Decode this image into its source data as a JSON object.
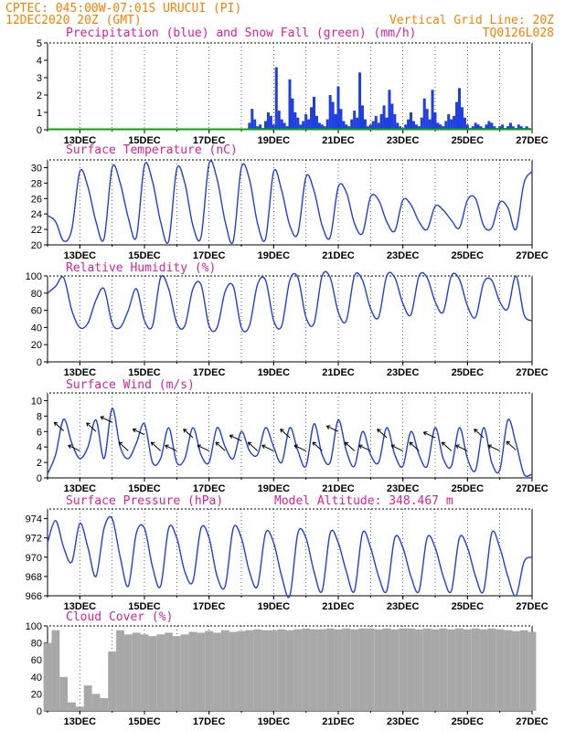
{
  "header": {
    "line1_left": "CPTEC:   045:00W-07:01S   URUCUI (PI)",
    "line2_left": "12DEC2020 20Z (GMT)",
    "line2_right": "Vertical Grid Line: 20Z",
    "line3_right": "TQ0126L028"
  },
  "colors": {
    "header": "#ff8000",
    "title": "#e0209a",
    "series": "#1f3fe0",
    "snow": "#00aa00",
    "cloud": "#a8a8a8"
  },
  "chart_data": [
    {
      "type": "bar",
      "title": "Precipitation (blue) and Snow Fall (green) (mm/h)",
      "x_tick_labels": [
        "13DEC",
        "15DEC",
        "17DEC",
        "19DEC",
        "21DEC",
        "23DEC",
        "25DEC",
        "27DEC"
      ],
      "ylim": [
        0,
        5
      ],
      "yticks": [
        0,
        1,
        2,
        3,
        4,
        5
      ],
      "grid": "vertical dotted at 20Z",
      "x_hours_from_start": [
        150,
        152,
        154,
        156,
        158,
        160,
        162,
        164,
        166,
        168,
        170,
        172,
        174,
        176,
        178,
        180,
        182,
        184,
        186,
        188,
        190,
        192,
        194,
        196,
        198,
        200,
        202,
        204,
        206,
        208,
        210,
        212,
        214,
        216,
        218,
        220,
        222,
        224,
        226,
        228,
        230,
        232,
        234,
        236,
        238,
        240,
        242,
        244,
        246,
        248,
        250,
        252,
        254,
        256,
        258,
        260,
        262,
        264,
        266,
        268,
        270,
        272,
        274,
        276,
        278,
        280,
        282,
        284,
        286,
        288,
        290,
        292,
        294,
        296,
        298,
        300,
        302,
        304,
        306,
        308,
        310,
        312,
        314,
        316,
        318,
        320,
        322,
        324,
        326,
        328,
        330,
        332,
        334,
        336,
        338,
        340,
        342,
        344,
        346,
        348,
        350,
        352,
        354,
        356,
        358
      ],
      "series": [
        {
          "name": "Precipitation",
          "values": [
            0.4,
            1.2,
            0.6,
            0.2,
            0.3,
            0.1,
            0.5,
            1.0,
            0.8,
            0.3,
            3.6,
            1.1,
            0.6,
            0.4,
            0.2,
            2.9,
            1.8,
            1.0,
            0.7,
            0.3,
            0.5,
            0.9,
            0.6,
            1.3,
            1.9,
            0.8,
            0.4,
            0.3,
            0.2,
            0.6,
            2.0,
            1.6,
            0.9,
            2.5,
            1.2,
            0.5,
            0.3,
            0.2,
            0.6,
            1.1,
            0.7,
            3.3,
            1.4,
            0.6,
            0.2,
            0.3,
            0.5,
            0.8,
            0.4,
            0.9,
            1.4,
            0.7,
            2.3,
            1.5,
            0.9,
            0.4,
            0.2,
            0.1,
            0.3,
            0.6,
            1.0,
            0.5,
            0.3,
            0.2,
            0.7,
            1.8,
            1.2,
            0.6,
            2.3,
            1.0,
            0.4,
            0.3,
            0.2,
            0.5,
            0.9,
            0.6,
            0.8,
            1.6,
            2.4,
            1.3,
            0.7,
            0.3,
            0.1,
            0.2,
            0.4,
            0.3,
            0.2,
            0.1,
            0.3,
            0.5,
            0.4,
            0.2,
            0.1,
            0.2,
            0.3,
            0.1,
            0.2,
            0.4,
            0.2,
            0.1,
            0.3,
            0.2,
            0.1,
            0.2,
            0.1
          ]
        },
        {
          "name": "Snow Fall",
          "values": [
            0,
            0,
            0
          ]
        }
      ]
    },
    {
      "type": "line",
      "title": "Surface Temperature (nC)",
      "ylim": [
        20,
        31
      ],
      "yticks": [
        20,
        22,
        24,
        26,
        28,
        30
      ],
      "x_hours_from_start": [
        0,
        6,
        12,
        18,
        24,
        30,
        36,
        42,
        48,
        54,
        60,
        66,
        72,
        78,
        84,
        90,
        96,
        102,
        108,
        114,
        120,
        126,
        132,
        138,
        144,
        150,
        156,
        162,
        168,
        174,
        180,
        186,
        192,
        198,
        204,
        210,
        216,
        222,
        228,
        234,
        240,
        246,
        252,
        258,
        264,
        270,
        276,
        282,
        288,
        294,
        300,
        306,
        312,
        318,
        324,
        330,
        336,
        342,
        348,
        354,
        360
      ],
      "series": [
        {
          "name": "Temperature",
          "values": [
            23.8,
            23.0,
            20.5,
            22.0,
            29.5,
            27.5,
            23.0,
            20.8,
            30.0,
            28.0,
            23.5,
            21.0,
            30.3,
            28.2,
            23.0,
            20.5,
            29.8,
            28.0,
            22.5,
            21.0,
            30.5,
            28.5,
            23.0,
            20.5,
            30.0,
            28.5,
            22.8,
            20.8,
            29.5,
            27.0,
            22.5,
            21.5,
            28.8,
            27.0,
            22.5,
            21.0,
            27.5,
            26.8,
            22.8,
            21.5,
            26.2,
            25.8,
            23.0,
            21.8,
            25.8,
            25.2,
            23.0,
            22.0,
            25.0,
            24.5,
            23.2,
            22.2,
            25.8,
            26.0,
            22.5,
            22.2,
            25.5,
            24.8,
            22.0,
            28.0,
            29.5
          ]
        }
      ]
    },
    {
      "type": "line",
      "title": "Relative Humidity (%)",
      "ylim": [
        0,
        100
      ],
      "yticks": [
        0,
        20,
        40,
        60,
        80,
        100
      ],
      "x_hours_from_start": [
        0,
        6,
        12,
        18,
        24,
        30,
        36,
        42,
        48,
        54,
        60,
        66,
        72,
        78,
        84,
        90,
        96,
        102,
        108,
        114,
        120,
        126,
        132,
        138,
        144,
        150,
        156,
        162,
        168,
        174,
        180,
        186,
        192,
        198,
        204,
        210,
        216,
        222,
        228,
        234,
        240,
        246,
        252,
        258,
        264,
        270,
        276,
        282,
        288,
        294,
        300,
        306,
        312,
        318,
        324,
        330,
        336,
        342,
        348,
        354,
        360
      ],
      "series": [
        {
          "name": "Relative Humidity",
          "values": [
            80,
            88,
            98,
            60,
            40,
            45,
            72,
            85,
            45,
            40,
            60,
            85,
            48,
            42,
            98,
            85,
            45,
            42,
            85,
            90,
            42,
            40,
            82,
            88,
            40,
            42,
            90,
            95,
            48,
            42,
            95,
            98,
            52,
            45,
            100,
            98,
            58,
            48,
            100,
            95,
            62,
            52,
            100,
            98,
            68,
            55,
            100,
            98,
            70,
            58,
            100,
            96,
            65,
            52,
            92,
            95,
            70,
            62,
            100,
            55,
            48
          ]
        }
      ]
    },
    {
      "type": "line",
      "title": "Surface Wind (m/s)",
      "ylim": [
        0,
        11
      ],
      "yticks": [
        0,
        2,
        4,
        6,
        8,
        10
      ],
      "x_hours_from_start": [
        0,
        6,
        12,
        18,
        24,
        30,
        36,
        42,
        48,
        54,
        60,
        66,
        72,
        78,
        84,
        90,
        96,
        102,
        108,
        114,
        120,
        126,
        132,
        138,
        144,
        150,
        156,
        162,
        168,
        174,
        180,
        186,
        192,
        198,
        204,
        210,
        216,
        222,
        228,
        234,
        240,
        246,
        252,
        258,
        264,
        270,
        276,
        282,
        288,
        294,
        300,
        306,
        312,
        318,
        324,
        330,
        336,
        342,
        348,
        354,
        360
      ],
      "series": [
        {
          "name": "Wind Speed",
          "values": [
            0.5,
            3.0,
            7.6,
            4.5,
            2.5,
            4.0,
            7.5,
            2.5,
            9.0,
            4.0,
            2.5,
            4.5,
            7.0,
            2.0,
            2.5,
            6.5,
            2.0,
            2.5,
            6.5,
            3.0,
            2.0,
            6.5,
            4.0,
            2.5,
            6.0,
            3.5,
            3.0,
            6.5,
            4.0,
            2.0,
            6.5,
            3.5,
            1.5,
            7.0,
            3.0,
            2.0,
            7.5,
            3.5,
            1.5,
            6.0,
            3.0,
            2.0,
            6.5,
            3.0,
            1.5,
            6.0,
            3.0,
            1.5,
            6.5,
            2.5,
            1.5,
            6.5,
            2.5,
            1.0,
            6.5,
            2.0,
            1.0,
            7.5,
            4.5,
            0.5,
            0.5
          ]
        }
      ]
    },
    {
      "type": "line",
      "title": "Surface Pressure (hPa)",
      "annotation": "Model Altitude: 348.467  m",
      "ylim": [
        966,
        975
      ],
      "yticks": [
        966,
        968,
        970,
        972,
        974
      ],
      "x_hours_from_start": [
        0,
        6,
        12,
        18,
        24,
        30,
        36,
        42,
        48,
        54,
        60,
        66,
        72,
        78,
        84,
        90,
        96,
        102,
        108,
        114,
        120,
        126,
        132,
        138,
        144,
        150,
        156,
        162,
        168,
        174,
        180,
        186,
        192,
        198,
        204,
        210,
        216,
        222,
        228,
        234,
        240,
        246,
        252,
        258,
        264,
        270,
        276,
        282,
        288,
        294,
        300,
        306,
        312,
        318,
        324,
        330,
        336,
        342,
        348,
        354,
        360
      ],
      "series": [
        {
          "name": "Pressure",
          "values": [
            971.5,
            973.8,
            971.0,
            969.5,
            973.5,
            971.0,
            968.0,
            973.0,
            974.0,
            970.0,
            967.0,
            972.5,
            973.0,
            969.0,
            967.0,
            973.0,
            972.0,
            968.5,
            967.5,
            973.0,
            972.0,
            968.0,
            967.0,
            973.0,
            972.0,
            968.5,
            967.0,
            972.5,
            971.5,
            968.0,
            966.0,
            972.5,
            972.0,
            968.5,
            966.5,
            972.5,
            971.5,
            968.5,
            966.5,
            972.5,
            971.0,
            968.0,
            966.5,
            972.0,
            971.0,
            968.0,
            966.5,
            972.0,
            971.0,
            968.0,
            966.5,
            972.0,
            971.0,
            968.0,
            966.5,
            972.5,
            971.0,
            968.0,
            966.0,
            969.5,
            970.0
          ]
        }
      ]
    },
    {
      "type": "area",
      "title": "Cloud Cover (%)",
      "ylim": [
        0,
        100
      ],
      "yticks": [
        0,
        20,
        40,
        60,
        80,
        100
      ],
      "x_hours_from_start": [
        0,
        6,
        12,
        18,
        24,
        30,
        36,
        42,
        48,
        54,
        60,
        66,
        72,
        78,
        84,
        90,
        96,
        102,
        108,
        114,
        120,
        126,
        132,
        138,
        144,
        150,
        156,
        162,
        168,
        174,
        180,
        186,
        192,
        198,
        204,
        210,
        216,
        222,
        228,
        234,
        240,
        246,
        252,
        258,
        264,
        270,
        276,
        282,
        288,
        294,
        300,
        306,
        312,
        318,
        324,
        330,
        336,
        342,
        348,
        354,
        360
      ],
      "series": [
        {
          "name": "Cloud Cover",
          "values": [
            80,
            95,
            40,
            10,
            5,
            30,
            20,
            15,
            70,
            95,
            90,
            92,
            90,
            88,
            90,
            92,
            88,
            90,
            93,
            92,
            94,
            92,
            95,
            93,
            94,
            95,
            96,
            95,
            95,
            96,
            95,
            96,
            97,
            96,
            96,
            97,
            96,
            97,
            96,
            97,
            97,
            96,
            97,
            96,
            97,
            97,
            96,
            97,
            96,
            97,
            96,
            97,
            96,
            97,
            96,
            97,
            96,
            95,
            94,
            95,
            93
          ]
        }
      ]
    }
  ]
}
